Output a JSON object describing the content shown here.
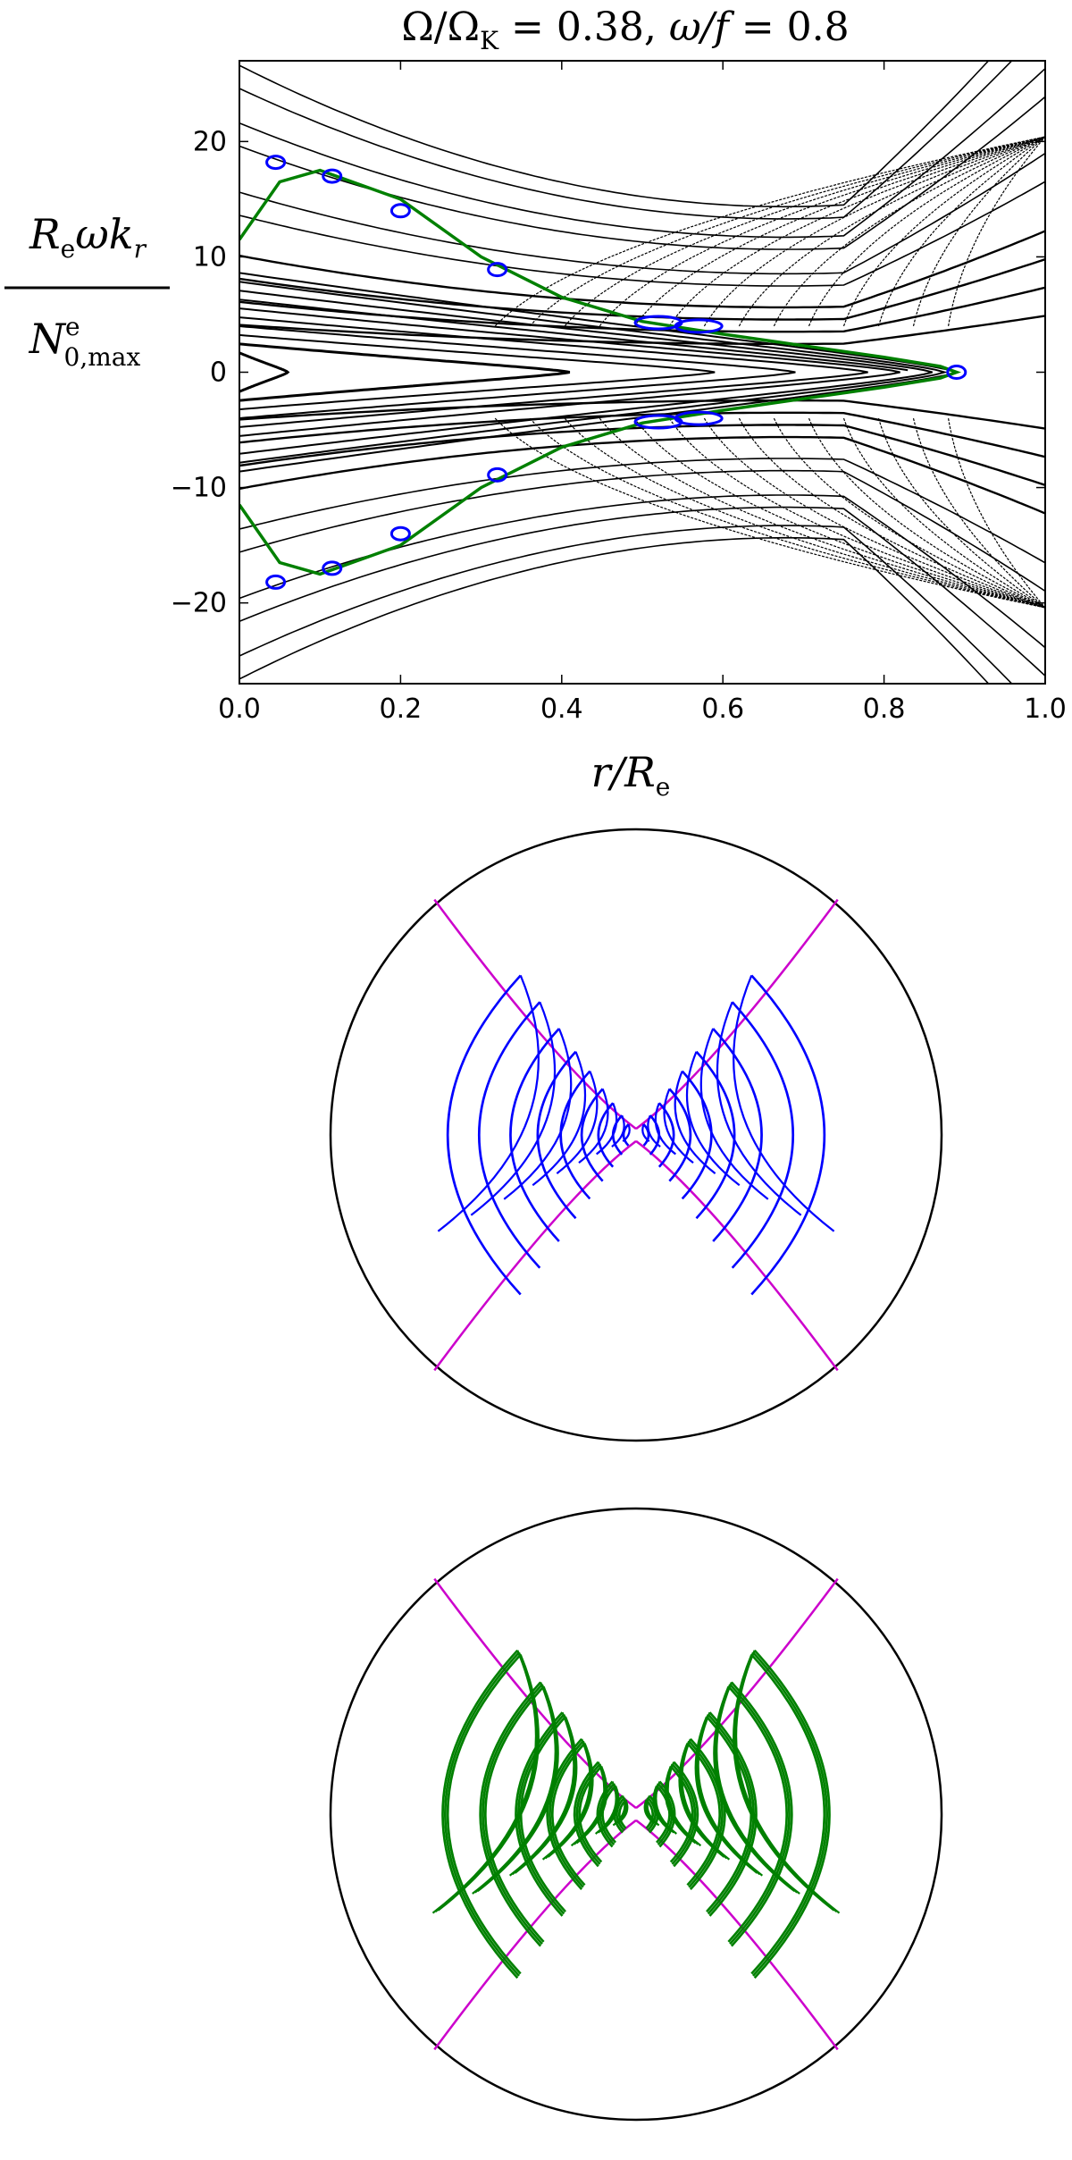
{
  "figure": {
    "title": {
      "omega_ratio": "Ω/Ω",
      "omega_sub": "K",
      "eq1": " = 0.38, ",
      "omega_f": "ω/f",
      "eq2": " = 0.8"
    },
    "ylabel": {
      "num_main": "R",
      "num_sub": "e",
      "num_rest": "ωk",
      "num_sub2": "r",
      "den_main": "N",
      "den_sup": "e",
      "den_sub": "0,max"
    },
    "xlabel": {
      "main": "r/R",
      "sub": "e"
    }
  },
  "colors": {
    "phase_lines": "#000000",
    "highlight_orbit": "#008000",
    "islands": "#0000ff",
    "blue_rays": "#0000ff",
    "green_rays": "#008000",
    "turning_surface": "#cc00cc",
    "boundary": "#000000"
  },
  "chart_data": [
    {
      "type": "line",
      "description_kind": "phase-space (Poincaré section)",
      "xlim": [
        0.0,
        1.0
      ],
      "ylim": [
        -27,
        27
      ],
      "xticks": [
        "0.0",
        "0.2",
        "0.4",
        "0.6",
        "0.8",
        "1.0"
      ],
      "yticks": [
        "−20",
        "−10",
        "0",
        "10",
        "20"
      ],
      "xtick_values": [
        0.0,
        0.2,
        0.4,
        0.6,
        0.8,
        1.0
      ],
      "ytick_values": [
        -20,
        -10,
        0,
        10,
        20
      ],
      "closed_orbit_tips_x": [
        0.06,
        0.41,
        0.59,
        0.69,
        0.78,
        0.82,
        0.84,
        0.86,
        0.875,
        0.89
      ],
      "open_curve_offsets_y": [
        3.5,
        5.5,
        7.5,
        9.5,
        13,
        15,
        19,
        21,
        24,
        26
      ],
      "highlight_orbit": {
        "series": "green",
        "points_upper": [
          [
            0.0,
            11.5
          ],
          [
            0.05,
            16.5
          ],
          [
            0.1,
            17.5
          ],
          [
            0.2,
            15.0
          ],
          [
            0.3,
            10.0
          ],
          [
            0.4,
            6.5
          ],
          [
            0.5,
            4.4
          ],
          [
            0.6,
            3.3
          ],
          [
            0.7,
            2.3
          ],
          [
            0.8,
            1.3
          ],
          [
            0.87,
            0.5
          ],
          [
            0.89,
            0.0
          ]
        ]
      },
      "island_chain": [
        [
          0.045,
          18.2
        ],
        [
          0.115,
          17.0
        ],
        [
          0.2,
          14.0
        ],
        [
          0.32,
          8.9
        ],
        [
          0.52,
          4.3
        ],
        [
          0.57,
          4.0
        ],
        [
          0.89,
          0.0
        ],
        [
          0.045,
          -18.2
        ],
        [
          0.115,
          -17.0
        ],
        [
          0.2,
          -14.0
        ],
        [
          0.32,
          -8.9
        ],
        [
          0.52,
          -4.3
        ],
        [
          0.57,
          -4.0
        ]
      ]
    },
    {
      "type": "line",
      "description_kind": "ray trajectories in meridional plane",
      "series": [
        {
          "name": "blue",
          "color": "#0000ff"
        }
      ],
      "arc_radii_fraction": [
        0.9,
        0.75,
        0.6,
        0.47,
        0.36,
        0.26,
        0.18,
        0.11,
        0.06
      ]
    },
    {
      "type": "line",
      "description_kind": "ray trajectories in meridional plane",
      "series": [
        {
          "name": "green",
          "color": "#008000"
        }
      ],
      "arc_radii_fraction": [
        0.9,
        0.72,
        0.55,
        0.4,
        0.27,
        0.16,
        0.08
      ]
    }
  ]
}
